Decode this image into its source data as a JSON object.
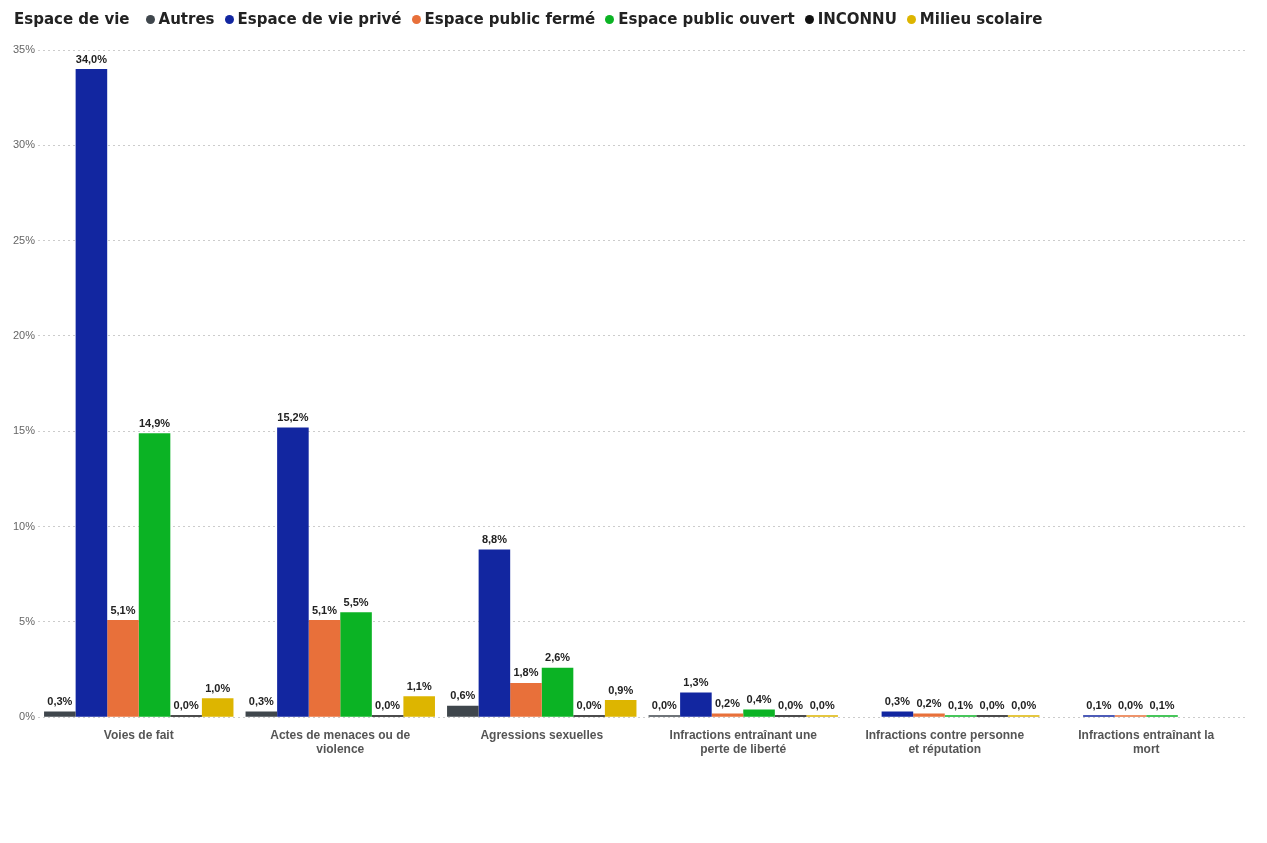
{
  "chart_data": {
    "type": "bar",
    "legend_title": "Espace de vie",
    "legend": "top left",
    "grid": "y",
    "categories": [
      "Voies de fait",
      "Actes de menaces ou de violence",
      "Agressions sexuelles",
      "Infractions entraînant une perte de liberté",
      "Infractions contre personne et réputation",
      "Infractions entraînant la mort"
    ],
    "ylim": [
      0,
      35
    ],
    "yticks": [
      {
        "value": 0,
        "label": "0%"
      },
      {
        "value": 5,
        "label": "5%"
      },
      {
        "value": 10,
        "label": "10%"
      },
      {
        "value": 15,
        "label": "15%"
      },
      {
        "value": 20,
        "label": "20%"
      },
      {
        "value": 25,
        "label": "25%"
      },
      {
        "value": 30,
        "label": "30%"
      },
      {
        "value": 35,
        "label": "35%"
      }
    ],
    "series": [
      {
        "name": "Autres",
        "color": "#3f464c",
        "values": [
          0.3,
          0.3,
          0.6,
          0.0,
          null,
          null
        ],
        "value_labels": [
          "0,3%",
          "0,3%",
          "0,6%",
          "0,0%",
          null,
          null
        ]
      },
      {
        "name": "Espace de vie privé",
        "color": "#1226a0",
        "values": [
          34.0,
          15.2,
          8.8,
          1.3,
          0.3,
          0.1
        ],
        "value_labels": [
          "34,0%",
          "15,2%",
          "8,8%",
          "1,3%",
          "0,3%",
          "0,1%"
        ]
      },
      {
        "name": "Espace public fermé",
        "color": "#e8703a",
        "values": [
          5.1,
          5.1,
          1.8,
          0.2,
          0.2,
          0.0
        ],
        "value_labels": [
          "5,1%",
          "5,1%",
          "1,8%",
          "0,2%",
          "0,2%",
          "0,0%"
        ]
      },
      {
        "name": "Espace public ouvert",
        "color": "#0bb324",
        "values": [
          14.9,
          5.5,
          2.6,
          0.4,
          0.1,
          0.1
        ],
        "value_labels": [
          "14,9%",
          "5,5%",
          "2,6%",
          "0,4%",
          "0,1%",
          "0,1%"
        ]
      },
      {
        "name": "INCONNU",
        "color": "#111111",
        "values": [
          0.0,
          0.0,
          0.0,
          0.0,
          0.0,
          null
        ],
        "value_labels": [
          "0,0%",
          "0,0%",
          "0,0%",
          "0,0%",
          "0,0%",
          null
        ]
      },
      {
        "name": "Milieu scolaire",
        "color": "#ddb500",
        "values": [
          1.0,
          1.1,
          0.9,
          0.0,
          0.0,
          null
        ],
        "value_labels": [
          "1,0%",
          "1,1%",
          "0,9%",
          "0,0%",
          "0,0%",
          null
        ]
      }
    ]
  }
}
